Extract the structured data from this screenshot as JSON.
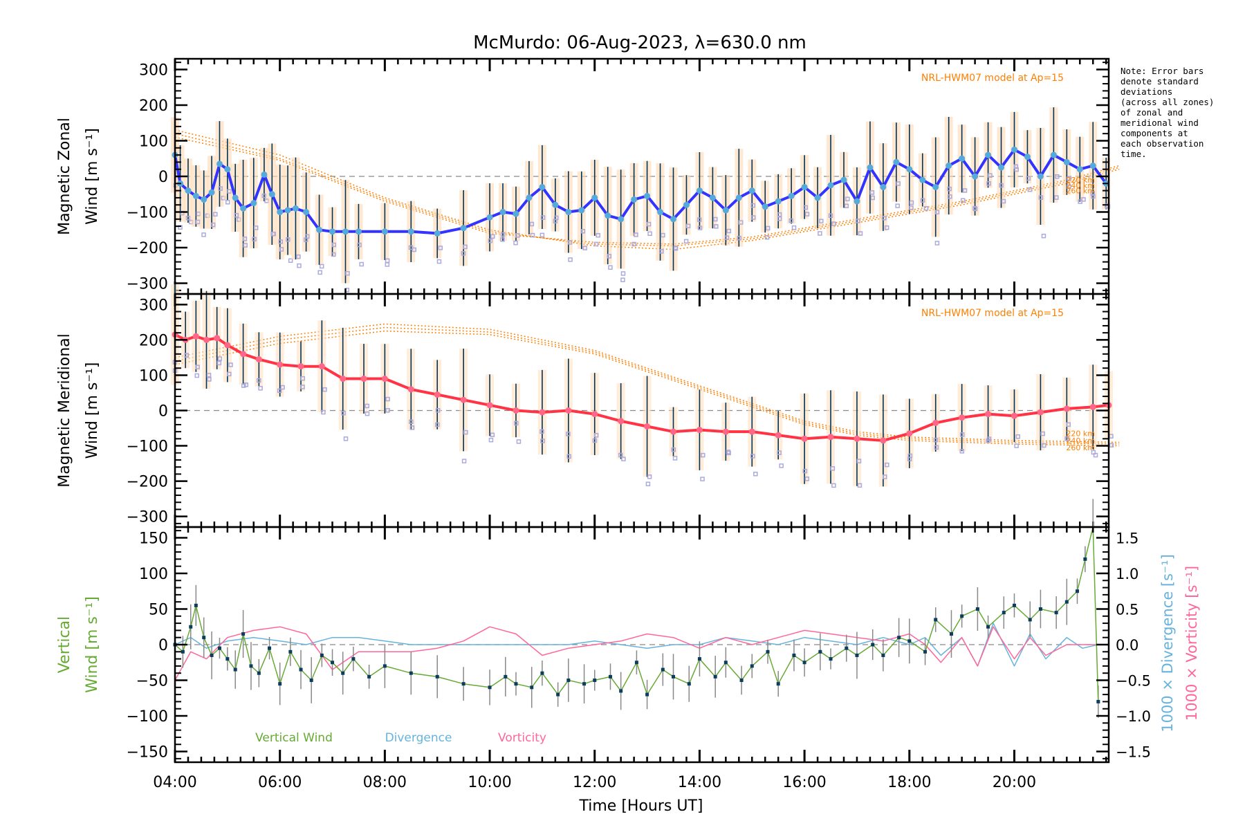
{
  "chart_data": [
    {
      "type": "line",
      "panel": "zonal",
      "title": "McMurdo: 06-Aug-2023, λ=630.0 nm",
      "ylabel_line1": "Magnetic Zonal",
      "ylabel_line2": "Wind [m s⁻¹]",
      "ylim": [
        -330,
        330
      ],
      "yticks": [
        -300,
        -200,
        -100,
        0,
        100,
        200,
        300
      ],
      "grid": false,
      "model_label": "NRL-HWM07 model at Ap=15",
      "altitude_labels": [
        "220 km",
        "240 km",
        "260 km"
      ],
      "series": [
        {
          "name": "Zonal wind",
          "color": "#3333ff",
          "x": [
            4.0,
            4.1,
            4.25,
            4.4,
            4.55,
            4.7,
            4.85,
            5.0,
            5.15,
            5.3,
            5.5,
            5.7,
            5.85,
            6.0,
            6.15,
            6.3,
            6.5,
            6.75,
            7.0,
            7.25,
            7.5,
            8.0,
            8.5,
            9.0,
            9.5,
            10.0,
            10.25,
            10.5,
            10.75,
            11.0,
            11.25,
            11.5,
            11.75,
            12.0,
            12.25,
            12.5,
            12.75,
            13.0,
            13.25,
            13.5,
            13.75,
            14.0,
            14.25,
            14.5,
            14.75,
            15.0,
            15.25,
            15.5,
            15.75,
            16.0,
            16.25,
            16.5,
            16.75,
            17.0,
            17.25,
            17.5,
            17.75,
            18.0,
            18.25,
            18.5,
            18.75,
            19.0,
            19.25,
            19.5,
            19.75,
            20.0,
            20.25,
            20.5,
            20.75,
            21.0,
            21.25,
            21.5,
            21.75
          ],
          "values": [
            60,
            -20,
            -40,
            -55,
            -65,
            -45,
            35,
            20,
            -60,
            -90,
            -75,
            5,
            -50,
            -100,
            -95,
            -90,
            -100,
            -150,
            -155,
            -155,
            -155,
            -155,
            -155,
            -160,
            -145,
            -115,
            -100,
            -105,
            -60,
            -30,
            -80,
            -100,
            -95,
            -60,
            -110,
            -120,
            -65,
            -55,
            -100,
            -120,
            -80,
            -40,
            -60,
            -95,
            -60,
            -40,
            -85,
            -70,
            -55,
            -30,
            -60,
            -25,
            -10,
            -70,
            25,
            -30,
            40,
            20,
            -10,
            -30,
            30,
            50,
            0,
            60,
            25,
            75,
            55,
            0,
            60,
            40,
            20,
            30,
            -20
          ]
        },
        {
          "name": "HWM07 220 km",
          "color": "#ff7f00",
          "x": [
            4,
            6,
            8,
            10,
            12,
            13.5,
            15,
            17,
            19,
            21,
            22
          ],
          "values": [
            130,
            60,
            -60,
            -150,
            -195,
            -205,
            -180,
            -130,
            -80,
            -20,
            20
          ]
        },
        {
          "name": "HWM07 240 km",
          "color": "#ff7f00",
          "x": [
            4,
            6,
            8,
            10,
            12,
            13.5,
            15,
            17,
            19,
            21,
            22
          ],
          "values": [
            120,
            50,
            -65,
            -155,
            -190,
            -195,
            -175,
            -125,
            -75,
            -15,
            25
          ]
        },
        {
          "name": "HWM07 260 km",
          "color": "#ff7f00",
          "x": [
            4,
            6,
            8,
            10,
            12,
            13.5,
            15,
            17,
            19,
            21,
            22
          ],
          "values": [
            110,
            45,
            -70,
            -160,
            -185,
            -190,
            -170,
            -120,
            -70,
            -10,
            30
          ]
        }
      ]
    },
    {
      "type": "line",
      "panel": "meridional",
      "ylabel_line1": "Magnetic Meridional",
      "ylabel_line2": "Wind [m s⁻¹]",
      "ylim": [
        -330,
        330
      ],
      "yticks": [
        -300,
        -200,
        -100,
        0,
        100,
        200,
        300
      ],
      "grid": false,
      "model_label": "NRL-HWM07 model at Ap=15",
      "altitude_labels": [
        "220 km",
        "240 km",
        "260 km"
      ],
      "series": [
        {
          "name": "Meridional wind",
          "color": "#ff3344",
          "x": [
            4.0,
            4.2,
            4.4,
            4.6,
            4.8,
            5.0,
            5.3,
            5.6,
            6.0,
            6.4,
            6.8,
            7.2,
            7.6,
            8.0,
            8.5,
            9.0,
            9.5,
            10.0,
            10.5,
            11.0,
            11.5,
            12.0,
            12.5,
            13.0,
            13.5,
            14.0,
            14.5,
            15.0,
            15.5,
            16.0,
            16.5,
            17.0,
            17.5,
            18.0,
            18.5,
            19.0,
            19.5,
            20.0,
            20.5,
            21.0,
            21.5,
            21.8
          ],
          "values": [
            215,
            200,
            210,
            200,
            205,
            185,
            160,
            145,
            130,
            125,
            125,
            90,
            90,
            90,
            60,
            45,
            30,
            15,
            0,
            -5,
            0,
            -10,
            -30,
            -45,
            -60,
            -55,
            -60,
            -60,
            -70,
            -80,
            -75,
            -80,
            -85,
            -65,
            -35,
            -20,
            -10,
            -15,
            -5,
            5,
            10,
            15
          ]
        },
        {
          "name": "HWM07 220 km",
          "color": "#ff7f00",
          "x": [
            4,
            6,
            8,
            10,
            12,
            14,
            16,
            17,
            18,
            20,
            22
          ],
          "values": [
            150,
            210,
            245,
            230,
            170,
            70,
            -30,
            -60,
            -75,
            -85,
            -90
          ]
        },
        {
          "name": "HWM07 240 km",
          "color": "#ff7f00",
          "x": [
            4,
            6,
            8,
            10,
            12,
            14,
            16,
            17,
            18,
            20,
            22
          ],
          "values": [
            140,
            200,
            235,
            222,
            165,
            65,
            -35,
            -65,
            -80,
            -90,
            -95
          ]
        },
        {
          "name": "HWM07 260 km",
          "color": "#ff7f00",
          "x": [
            4,
            6,
            8,
            10,
            12,
            14,
            16,
            17,
            18,
            20,
            22
          ],
          "values": [
            130,
            190,
            225,
            215,
            160,
            60,
            -40,
            -70,
            -85,
            -95,
            -100
          ]
        }
      ]
    },
    {
      "type": "line",
      "panel": "vertical",
      "ylabel_line1": "Vertical",
      "ylabel_line2": "Wind [m s⁻¹]",
      "ylim": [
        -165,
        165
      ],
      "yticks": [
        -150,
        -100,
        -50,
        0,
        50,
        100,
        150
      ],
      "y2label_divergence": "1000 × Divergence [s⁻¹]",
      "y2label_vorticity": "1000 × Vorticity [s⁻¹]",
      "y2lim": [
        -1.65,
        1.65
      ],
      "y2ticks": [
        -1.5,
        -1.0,
        -0.5,
        0.0,
        0.5,
        1.0,
        1.5
      ],
      "legend": [
        "Vertical Wind",
        "Divergence",
        "Vorticity"
      ],
      "legend_placement": "bottom-left",
      "series": [
        {
          "name": "Vertical Wind",
          "color": "#66aa33",
          "axis": "left",
          "x": [
            4.0,
            4.15,
            4.3,
            4.4,
            4.55,
            4.7,
            4.85,
            5.0,
            5.15,
            5.3,
            5.45,
            5.6,
            5.8,
            6.0,
            6.2,
            6.4,
            6.6,
            6.8,
            7.0,
            7.2,
            7.4,
            7.7,
            8.0,
            8.5,
            9.0,
            9.5,
            10.0,
            10.3,
            10.5,
            10.8,
            11.0,
            11.3,
            11.5,
            11.8,
            12.0,
            12.3,
            12.5,
            12.8,
            13.0,
            13.3,
            13.5,
            13.8,
            14.0,
            14.3,
            14.5,
            14.8,
            15.0,
            15.3,
            15.5,
            15.8,
            16.0,
            16.3,
            16.5,
            16.8,
            17.0,
            17.3,
            17.5,
            17.8,
            18.0,
            18.3,
            18.5,
            18.8,
            19.0,
            19.3,
            19.5,
            19.8,
            20.0,
            20.3,
            20.5,
            20.8,
            21.0,
            21.2,
            21.35,
            21.5,
            21.6
          ],
          "values": [
            0,
            -10,
            25,
            55,
            10,
            -15,
            -5,
            -20,
            -35,
            15,
            -30,
            -40,
            -5,
            -55,
            -10,
            -35,
            -50,
            -15,
            -25,
            -40,
            -20,
            -45,
            -30,
            -40,
            -45,
            -55,
            -60,
            -45,
            -55,
            -60,
            -40,
            -70,
            -50,
            -55,
            -50,
            -45,
            -65,
            -25,
            -70,
            -35,
            -45,
            -55,
            -20,
            -45,
            -25,
            -50,
            -30,
            -10,
            -55,
            -15,
            -25,
            -10,
            -20,
            -5,
            -15,
            0,
            -15,
            10,
            5,
            -10,
            35,
            15,
            40,
            50,
            25,
            45,
            55,
            35,
            50,
            45,
            60,
            75,
            120,
            180,
            -80
          ]
        },
        {
          "name": "Divergence",
          "color": "#66b3dd",
          "axis": "right",
          "x": [
            4.0,
            4.3,
            4.6,
            5.0,
            5.5,
            6.0,
            6.5,
            7.0,
            7.5,
            8.0,
            8.5,
            9.0,
            9.5,
            10.0,
            10.5,
            11.0,
            11.5,
            12.0,
            12.5,
            13.0,
            13.5,
            14.0,
            14.5,
            15.0,
            15.5,
            16.0,
            16.5,
            17.0,
            17.5,
            18.0,
            18.3,
            18.6,
            19.0,
            19.3,
            19.6,
            20.0,
            20.3,
            20.6,
            21.0,
            21.3,
            21.6,
            21.8
          ],
          "values": [
            0.0,
            0.1,
            -0.05,
            0.05,
            0.1,
            0.05,
            0.0,
            0.1,
            0.1,
            0.05,
            0.0,
            0.0,
            0.0,
            0.0,
            0.0,
            0.0,
            0.0,
            0.05,
            0.0,
            -0.05,
            0.0,
            0.0,
            0.1,
            0.05,
            0.0,
            0.1,
            0.05,
            0.0,
            0.1,
            0.0,
            0.1,
            -0.15,
            0.1,
            -0.3,
            0.3,
            -0.3,
            0.15,
            -0.2,
            0.1,
            -0.05,
            0.0,
            0.0
          ]
        },
        {
          "name": "Vorticity",
          "color": "#ff6699",
          "axis": "right",
          "x": [
            4.0,
            4.3,
            4.6,
            5.0,
            5.5,
            6.0,
            6.5,
            7.0,
            7.5,
            8.0,
            8.5,
            9.0,
            9.5,
            10.0,
            10.5,
            11.0,
            11.5,
            12.0,
            12.5,
            13.0,
            13.5,
            14.0,
            14.5,
            15.0,
            15.5,
            16.0,
            16.5,
            17.0,
            17.5,
            18.0,
            18.3,
            18.6,
            19.0,
            19.3,
            19.6,
            20.0,
            20.3,
            20.6,
            21.0,
            21.3,
            21.6,
            21.8
          ],
          "values": [
            -0.5,
            -0.1,
            -0.2,
            0.1,
            0.2,
            0.25,
            0.15,
            -0.35,
            -0.1,
            -0.1,
            -0.1,
            -0.05,
            0.05,
            0.25,
            0.15,
            -0.15,
            -0.05,
            0.0,
            0.05,
            0.15,
            0.1,
            -0.05,
            0.1,
            0.0,
            0.1,
            0.2,
            0.15,
            0.1,
            0.05,
            0.15,
            0.0,
            -0.25,
            0.1,
            -0.3,
            0.25,
            -0.2,
            0.1,
            -0.15,
            0.0,
            0.0,
            0.0,
            0.0
          ]
        }
      ]
    }
  ],
  "xaxis": {
    "label": "Time [Hours UT]",
    "xlim": [
      4.0,
      21.8
    ],
    "ticks": [
      4,
      6,
      8,
      10,
      12,
      14,
      16,
      18,
      20
    ],
    "tick_labels": [
      "04:00",
      "06:00",
      "08:00",
      "10:00",
      "12:00",
      "14:00",
      "16:00",
      "18:00",
      "20:00"
    ]
  },
  "note": "Note: Error bars\ndenote standard\ndeviations\n(across all zones)\nof zonal and\nmeridional wind\ncomponents at\neach observation\ntime.",
  "colors": {
    "zonal": "#3333ff",
    "zonal_point": "#55aadd",
    "meridional": "#ff3344",
    "meridional_point": "#ff6688",
    "model": "#ff7f00",
    "vertical": "#66aa33",
    "divergence": "#66b3dd",
    "vorticity": "#ff6699",
    "errbar": "#003355",
    "scatter": "#aaaadd"
  }
}
